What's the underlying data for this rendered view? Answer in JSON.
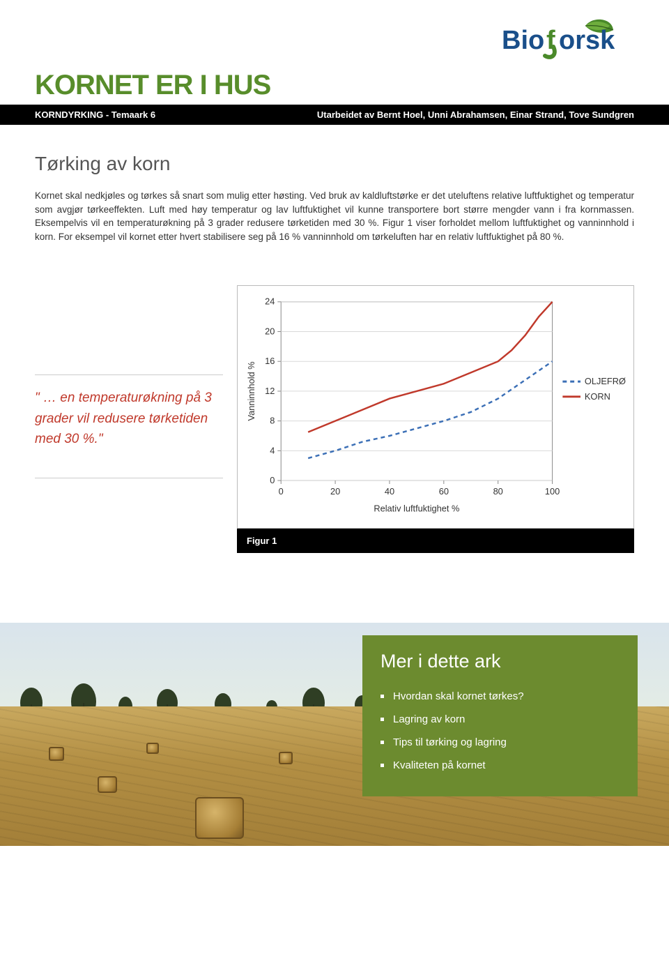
{
  "logo": {
    "text_bio": "Bio",
    "text_orsk": "orsk"
  },
  "main_title": "KORNET ER I HUS",
  "black_bar": {
    "left": "KORNDYRKING - Temaark 6",
    "right": "Utarbeidet av Bernt Hoel, Unni Abrahamsen, Einar Strand, Tove Sundgren"
  },
  "section_title": "Tørking av korn",
  "body_text": "Kornet skal nedkjøles og tørkes så snart som mulig etter høsting. Ved bruk av kaldluftstørke er det uteluftens relative luftfuktighet og temperatur som avgjør tørkeeffekten. Luft med høy temperatur og lav luftfuktighet vil kunne transportere bort større mengder vann i fra kornmassen. Eksempelvis vil en temperaturøkning på 3 grader redusere tørketiden med 30 %. Figur 1 viser forholdet mellom luftfuktighet og vanninnhold i korn. For eksempel vil kornet etter hvert stabilisere seg på 16 % vanninnhold om tørkeluften har en relativ luftfuktighet på 80 %.",
  "pull_quote": "\" … en temperaturøkning på 3 grader vil redusere tørketiden med 30 %.\"",
  "chart": {
    "type": "line",
    "y_label": "Vanninnhold %",
    "x_label": "Relativ luftfuktighet %",
    "x_ticks": [
      0,
      20,
      40,
      60,
      80,
      100
    ],
    "y_ticks": [
      0,
      4,
      8,
      12,
      16,
      20,
      24
    ],
    "xlim": [
      0,
      100
    ],
    "ylim": [
      0,
      24
    ],
    "background_color": "#ffffff",
    "grid_color": "#d9d9d9",
    "axis_color": "#888888",
    "tick_fontsize": 13,
    "label_fontsize": 13,
    "series": [
      {
        "name": "OLJEFRØ",
        "legend_label": "OLJEFRØ",
        "color": "#3b6fb6",
        "dash": "6,5",
        "width": 2.5,
        "marker": "none",
        "points": [
          [
            10,
            3.0
          ],
          [
            20,
            4.0
          ],
          [
            30,
            5.2
          ],
          [
            40,
            6.0
          ],
          [
            50,
            7.0
          ],
          [
            60,
            8.0
          ],
          [
            70,
            9.2
          ],
          [
            80,
            11.0
          ],
          [
            90,
            13.5
          ],
          [
            100,
            16.0
          ]
        ]
      },
      {
        "name": "KORN",
        "legend_label": "KORN",
        "color": "#c0392b",
        "dash": "none",
        "width": 2.5,
        "marker": "none",
        "points": [
          [
            10,
            6.5
          ],
          [
            20,
            8.0
          ],
          [
            30,
            9.5
          ],
          [
            40,
            11.0
          ],
          [
            50,
            12.0
          ],
          [
            60,
            13.0
          ],
          [
            70,
            14.5
          ],
          [
            80,
            16.0
          ],
          [
            85,
            17.5
          ],
          [
            90,
            19.5
          ],
          [
            95,
            22.0
          ],
          [
            100,
            24.0
          ]
        ]
      }
    ],
    "legend": {
      "position": "right",
      "fontsize": 13
    }
  },
  "figure_caption": "Figur 1",
  "info_panel": {
    "title": "Mer i dette ark",
    "items": [
      "Hvordan skal kornet tørkes?",
      "Lagring av korn",
      "Tips til tørking og lagring",
      "Kvaliteten på kornet"
    ]
  },
  "colors": {
    "brand_green": "#588d2b",
    "quote_red": "#c0392b",
    "panel_green": "#6c8b2f"
  }
}
